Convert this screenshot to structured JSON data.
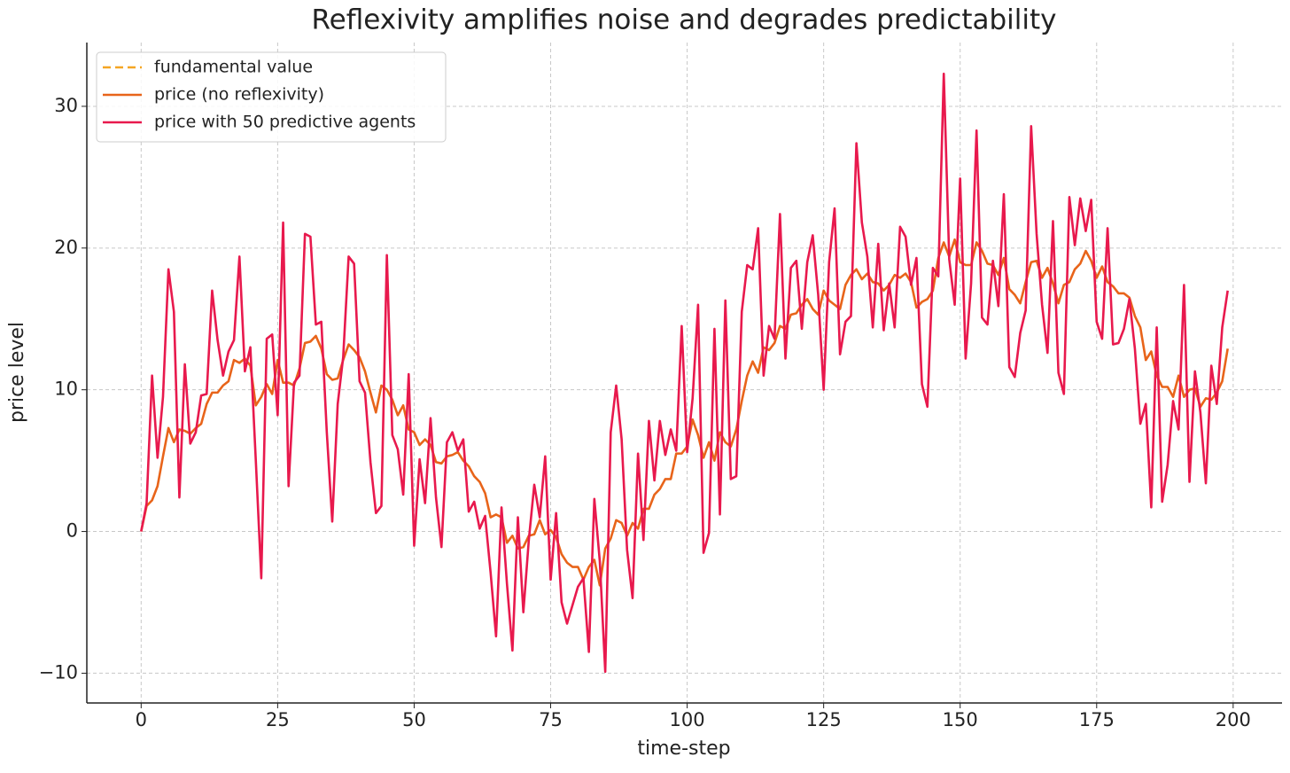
{
  "chart_data": {
    "type": "line",
    "title": "Reflexivity amplifies noise and degrades predictability",
    "x_label": "time-step",
    "y_label": "price level",
    "x": [
      0,
      1,
      2,
      3,
      4,
      5,
      6,
      7,
      8,
      9,
      10,
      11,
      12,
      13,
      14,
      15,
      16,
      17,
      18,
      19,
      20,
      21,
      22,
      23,
      24,
      25,
      26,
      27,
      28,
      29,
      30,
      31,
      32,
      33,
      34,
      35,
      36,
      37,
      38,
      39,
      40,
      41,
      42,
      43,
      44,
      45,
      46,
      47,
      48,
      49,
      50,
      51,
      52,
      53,
      54,
      55,
      56,
      57,
      58,
      59,
      60,
      61,
      62,
      63,
      64,
      65,
      66,
      67,
      68,
      69,
      70,
      71,
      72,
      73,
      74,
      75,
      76,
      77,
      78,
      79,
      80,
      81,
      82,
      83,
      84,
      85,
      86,
      87,
      88,
      89,
      90,
      91,
      92,
      93,
      94,
      95,
      96,
      97,
      98,
      99,
      100,
      101,
      102,
      103,
      104,
      105,
      106,
      107,
      108,
      109,
      110,
      111,
      112,
      113,
      114,
      115,
      116,
      117,
      118,
      119,
      120,
      121,
      122,
      123,
      124,
      125,
      126,
      127,
      128,
      129,
      130,
      131,
      132,
      133,
      134,
      135,
      136,
      137,
      138,
      139,
      140,
      141,
      142,
      143,
      144,
      145,
      146,
      147,
      148,
      149,
      150,
      151,
      152,
      153,
      154,
      155,
      156,
      157,
      158,
      159,
      160,
      161,
      162,
      163,
      164,
      165,
      166,
      167,
      168,
      169,
      170,
      171,
      172,
      173,
      174,
      175,
      176,
      177,
      178,
      179,
      180,
      181,
      182,
      183,
      184,
      185,
      186,
      187,
      188,
      189,
      190,
      191,
      192,
      193,
      194,
      195,
      196,
      197,
      198,
      199
    ],
    "series": [
      {
        "name": "fundamental value",
        "color": "#f5a623",
        "dashed": true,
        "values": [
          null,
          null,
          null,
          null,
          null,
          null,
          null,
          null,
          null,
          null,
          null,
          null,
          null,
          null,
          null,
          null,
          null,
          null,
          null,
          null,
          null,
          null,
          null,
          null,
          null,
          null,
          null,
          null,
          null,
          null,
          null,
          null,
          null,
          null,
          null,
          null,
          null,
          null,
          null,
          null,
          null,
          null,
          null,
          null,
          null,
          null,
          null,
          null,
          null,
          null,
          null,
          null,
          null,
          null,
          null,
          null,
          null,
          null,
          null,
          null,
          null,
          null,
          null,
          null,
          null,
          null,
          null,
          null,
          null,
          null,
          null,
          null,
          null,
          null,
          null,
          null,
          null,
          null,
          null,
          null,
          null,
          null,
          null,
          null,
          null,
          null,
          null,
          null,
          null,
          null,
          null,
          null,
          null,
          null,
          null,
          null,
          null,
          null,
          null,
          null,
          null,
          null,
          null,
          null,
          null,
          null,
          null,
          null,
          null,
          null,
          null,
          null,
          null,
          null,
          null,
          null,
          null,
          null,
          null,
          null,
          null,
          null,
          null,
          null,
          null,
          null,
          null,
          null,
          null,
          null,
          null,
          null,
          null,
          null,
          null,
          null,
          null,
          null,
          null,
          null,
          null,
          null,
          null,
          null,
          null,
          null,
          null,
          null,
          null,
          null,
          null,
          null,
          null,
          null,
          null,
          null,
          null,
          null,
          null,
          null,
          null,
          null,
          null,
          null,
          null,
          null,
          null,
          null,
          null,
          null,
          null,
          null,
          null,
          null,
          null,
          null,
          null,
          null,
          null,
          null,
          null,
          null,
          null,
          null,
          null,
          null,
          null,
          null,
          null,
          null,
          null,
          null,
          null,
          null,
          null,
          null,
          null,
          null,
          null,
          null
        ]
      },
      {
        "name": "price (no reflexivity)",
        "color": "#e8641a",
        "dashed": false,
        "values": [
          0,
          1.8,
          2.2,
          3.2,
          5.3,
          7.3,
          6.3,
          7.2,
          7.1,
          6.9,
          7.3,
          7.6,
          9,
          9.8,
          9.8,
          10.3,
          10.6,
          12.1,
          11.9,
          12.2,
          11.7,
          8.9,
          9.5,
          10.4,
          9.7,
          12.1,
          10.5,
          10.5,
          10.3,
          11.5,
          13.3,
          13.4,
          13.8,
          12.9,
          11.1,
          10.7,
          10.8,
          12.1,
          13.2,
          12.8,
          12.3,
          11.3,
          9.8,
          8.4,
          10.3,
          10,
          9.3,
          8.2,
          8.9,
          7.2,
          7,
          6.1,
          6.5,
          6.1,
          4.9,
          4.8,
          5.3,
          5.4,
          5.6,
          5,
          4.6,
          3.9,
          3.5,
          2.7,
          1,
          1.2,
          1,
          -0.8,
          -0.3,
          -1.2,
          -1.1,
          -0.3,
          -0.2,
          0.8,
          -0.2,
          0.1,
          -0.4,
          -1.6,
          -2.2,
          -2.5,
          -2.5,
          -3.4,
          -2.5,
          -2,
          -3.8,
          -1.2,
          -0.5,
          0.8,
          0.6,
          -0.3,
          0.6,
          0.2,
          1.6,
          1.6,
          2.6,
          3,
          3.7,
          3.7,
          5.5,
          5.5,
          6,
          7.9,
          6.8,
          5.2,
          6.3,
          5,
          7,
          6.3,
          6,
          7.2,
          9.2,
          11,
          12,
          11.2,
          13,
          12.8,
          13.3,
          14.5,
          14.3,
          15.3,
          15.4,
          16,
          16.4,
          15.7,
          15.3,
          17,
          16.3,
          16,
          15.7,
          17.4,
          18.1,
          18.5,
          17.8,
          18.2,
          17.6,
          17.5,
          17,
          17.4,
          18.1,
          17.9,
          18.2,
          17.6,
          15.8,
          16.2,
          16.4,
          17,
          19.3,
          20.4,
          19.4,
          20.6,
          19,
          18.8,
          18.8,
          20.4,
          19.8,
          18.9,
          18.8,
          18.1,
          19.3,
          17.1,
          16.7,
          16.1,
          17.6,
          19,
          19.1,
          17.9,
          18.6,
          17.5,
          16.1,
          17.4,
          17.6,
          18.5,
          18.9,
          19.8,
          19.1,
          17.9,
          18.7,
          17.6,
          17.3,
          16.8,
          16.8,
          16.5,
          15.2,
          14.4,
          12.1,
          12.7,
          11,
          10.2,
          10.2,
          9.5,
          11,
          9.5,
          10,
          10.1,
          8.8,
          9.4,
          9.3,
          9.8,
          10.6,
          12.9
        ]
      },
      {
        "name": "price with 50 predictive agents",
        "color": "#e8194d",
        "dashed": false,
        "values": [
          0,
          2,
          11,
          5.2,
          9.5,
          18.5,
          15.5,
          2.4,
          11.8,
          6.2,
          7,
          9.6,
          9.7,
          17,
          13.5,
          11,
          12.7,
          13.5,
          19.4,
          11.3,
          13,
          5,
          -3.3,
          13.6,
          13.9,
          8.2,
          21.8,
          3.2,
          10.5,
          11,
          21,
          20.8,
          14.6,
          14.8,
          7,
          0.7,
          9,
          12.3,
          19.4,
          18.9,
          10.6,
          9.8,
          4.9,
          1.3,
          1.8,
          19.5,
          6.8,
          5.8,
          2.6,
          11.1,
          -1,
          5.1,
          2,
          8,
          2.4,
          -1.1,
          6.3,
          7,
          5.7,
          6.5,
          1.4,
          2.1,
          0.2,
          1.1,
          -2.9,
          -7.4,
          1.7,
          -3.7,
          -8.4,
          1,
          -5.7,
          -0.6,
          3.3,
          1,
          5.3,
          -3.4,
          1.3,
          -5,
          -6.5,
          -5.2,
          -3.9,
          -3.3,
          -8.5,
          2.3,
          -2.1,
          -9.9,
          7,
          10.3,
          6.5,
          -1.3,
          -4.7,
          5.5,
          -0.6,
          7.8,
          3.6,
          7.8,
          5.4,
          7.2,
          5.7,
          14.5,
          5.6,
          9.4,
          16,
          -1.5,
          -0.1,
          14.3,
          1.2,
          16.3,
          3.7,
          3.9,
          15.5,
          18.8,
          18.5,
          21.4,
          11,
          14.5,
          13.6,
          22.4,
          12.2,
          18.6,
          19.1,
          14.3,
          19,
          20.9,
          16.7,
          10,
          19,
          22.8,
          12.5,
          14.8,
          15.2,
          27.4,
          21.8,
          19.4,
          14.4,
          20.3,
          14.2,
          17.5,
          14.4,
          21.5,
          20.8,
          17.4,
          19.3,
          10.4,
          8.8,
          18.6,
          18,
          32.3,
          19.2,
          16,
          24.9,
          12.2,
          17.5,
          28.3,
          15.1,
          14.6,
          19.1,
          15.9,
          23.8,
          11.6,
          10.9,
          14,
          15.6,
          28.6,
          21,
          16,
          12.6,
          21.9,
          11.2,
          9.7,
          23.6,
          20.2,
          23.5,
          21.2,
          23.4,
          14.8,
          13.6,
          21.4,
          13.2,
          13.3,
          14.3,
          16.4,
          12.9,
          7.6,
          9,
          1.7,
          14.4,
          2.1,
          4.7,
          9.2,
          7.2,
          17.4,
          3.5,
          11.3,
          8.4,
          3.4,
          11.7,
          9,
          14.4,
          17
        ]
      }
    ],
    "xlim": [
      -9.95,
      208.95
    ],
    "ylim": [
      -12.1,
      34.5
    ],
    "xticks": [
      0,
      25,
      50,
      75,
      100,
      125,
      150,
      175,
      200
    ],
    "yticks": [
      {
        "value": -10,
        "label": "−10"
      },
      0,
      10,
      20,
      30
    ],
    "grid": true,
    "legend": "upper left"
  }
}
